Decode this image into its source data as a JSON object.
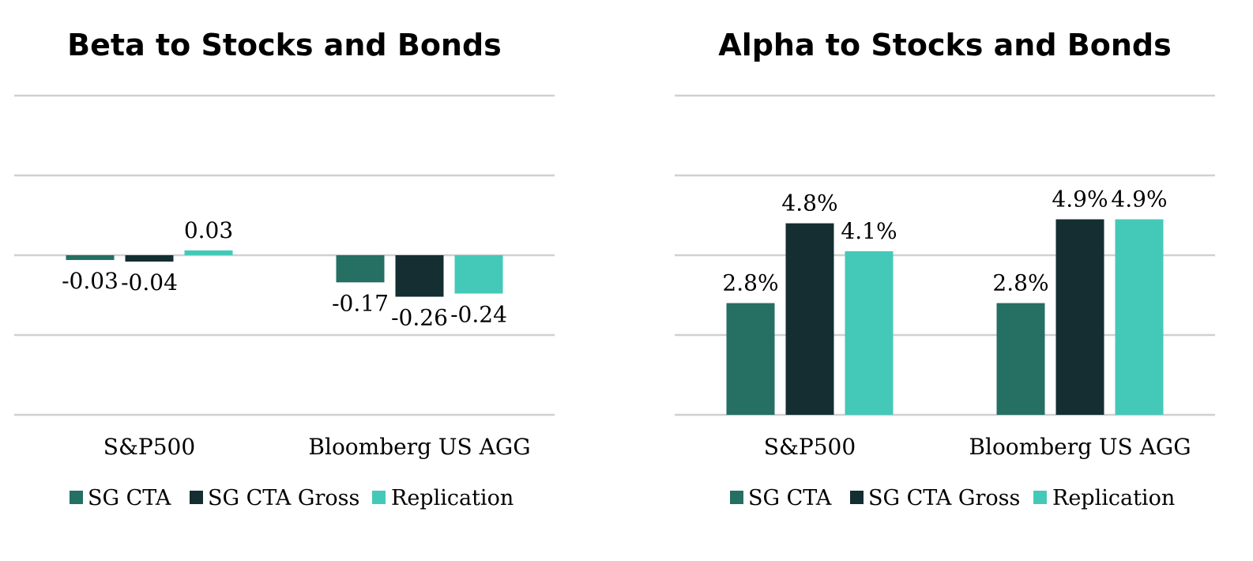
{
  "chart_data": [
    {
      "type": "bar",
      "title": "Beta to Stocks and Bonds",
      "categories": [
        "S&P500",
        "Bloomberg US AGG"
      ],
      "series": [
        {
          "name": "SG CTA",
          "values": [
            -0.03,
            -0.17
          ],
          "labels": [
            "-0.03",
            "-0.17"
          ],
          "color": "#256f63"
        },
        {
          "name": "SG CTA Gross",
          "values": [
            -0.04,
            -0.26
          ],
          "labels": [
            "-0.04",
            "-0.26"
          ],
          "color": "#142e31"
        },
        {
          "name": "Replication",
          "values": [
            0.03,
            -0.24
          ],
          "labels": [
            "0.03",
            "-0.24"
          ],
          "color": "#44c9b8"
        }
      ],
      "ylim": [
        -1.0,
        1.0
      ],
      "grid": true,
      "legend": "bottom"
    },
    {
      "type": "bar",
      "title": "Alpha to Stocks and Bonds",
      "categories": [
        "S&P500",
        "Bloomberg US AGG"
      ],
      "series": [
        {
          "name": "SG CTA",
          "values": [
            2.8,
            2.8
          ],
          "labels": [
            "2.8%",
            "2.8%"
          ],
          "color": "#256f63"
        },
        {
          "name": "SG CTA Gross",
          "values": [
            4.8,
            4.9
          ],
          "labels": [
            "4.8%",
            "4.9%"
          ],
          "color": "#142e31"
        },
        {
          "name": "Replication",
          "values": [
            4.1,
            4.9
          ],
          "labels": [
            "4.1%",
            "4.9%"
          ],
          "color": "#44c9b8"
        }
      ],
      "ylim": [
        0,
        8
      ],
      "grid": true,
      "legend": "bottom"
    }
  ]
}
